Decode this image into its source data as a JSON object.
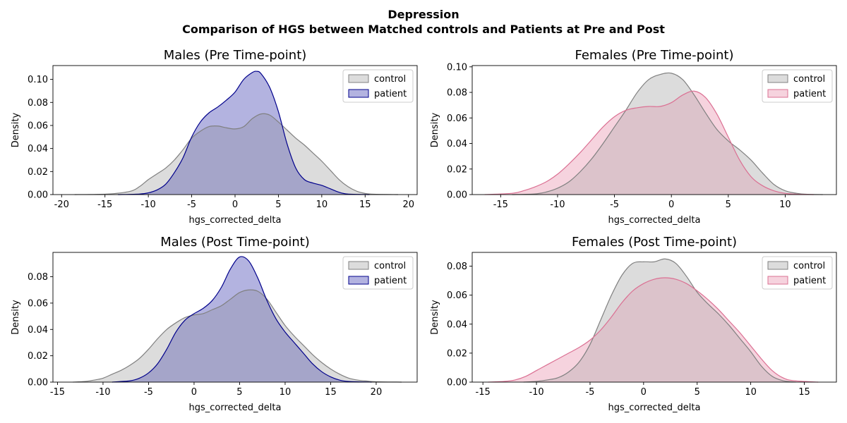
{
  "suptitle": {
    "line1": "Depression",
    "line2": "Comparison of HGS between Matched controls and Patients at Pre and Post"
  },
  "colors": {
    "control_line": "#808080",
    "control_fill": "#dcdcdc",
    "male_patient_line": "#00008b",
    "male_patient_fill": "#b3b3e0",
    "female_patient_line": "#db7093",
    "female_patient_fill": "#f6d3de",
    "overlap_male": "#a5a5c9",
    "overlap_female": "#dcc3cb"
  },
  "chart_data": [
    {
      "type": "area",
      "title": "Males (Pre Time-point)",
      "xlabel": "hgs_corrected_delta",
      "ylabel": "Density",
      "xlim": [
        -21,
        21
      ],
      "ylim": [
        0,
        0.112
      ],
      "xticks": [
        -20,
        -15,
        -10,
        -5,
        0,
        5,
        10,
        15,
        20
      ],
      "yticks": [
        "0.00",
        "0.02",
        "0.04",
        "0.06",
        "0.08",
        "0.10"
      ],
      "legend": "top-right",
      "grid": false,
      "series": [
        {
          "name": "control",
          "x": [
            -18.5,
            -16,
            -14,
            -12,
            -11,
            -10,
            -9,
            -8,
            -7,
            -6,
            -5,
            -4,
            -3,
            -2,
            -1,
            0,
            1,
            2,
            3,
            4,
            5,
            6,
            7,
            8,
            9,
            10,
            11,
            12,
            13,
            14,
            15,
            16,
            18.8
          ],
          "y": [
            0,
            0.0002,
            0.0008,
            0.003,
            0.007,
            0.013,
            0.018,
            0.023,
            0.03,
            0.039,
            0.049,
            0.055,
            0.059,
            0.0595,
            0.058,
            0.057,
            0.059,
            0.066,
            0.07,
            0.069,
            0.063,
            0.056,
            0.049,
            0.043,
            0.036,
            0.029,
            0.021,
            0.013,
            0.007,
            0.003,
            0.001,
            0.0003,
            0
          ]
        },
        {
          "name": "patient",
          "x": [
            -13.5,
            -11,
            -10,
            -9,
            -8,
            -7,
            -6,
            -5,
            -4,
            -3,
            -2,
            -1,
            0,
            1,
            2,
            2.5,
            3,
            4,
            5,
            6,
            7,
            8,
            9,
            10,
            11,
            12,
            13,
            15.5
          ],
          "y": [
            0,
            0.0005,
            0.0015,
            0.004,
            0.009,
            0.019,
            0.032,
            0.05,
            0.063,
            0.071,
            0.076,
            0.082,
            0.089,
            0.1,
            0.106,
            0.107,
            0.105,
            0.093,
            0.072,
            0.044,
            0.023,
            0.013,
            0.01,
            0.008,
            0.005,
            0.002,
            0.0005,
            0
          ]
        }
      ]
    },
    {
      "type": "area",
      "title": "Females (Pre Time-point)",
      "xlabel": "hgs_corrected_delta",
      "ylabel": "Density",
      "xlim": [
        -17.5,
        14.5
      ],
      "ylim": [
        0,
        0.101
      ],
      "xticks": [
        -15,
        -10,
        -5,
        0,
        5,
        10
      ],
      "yticks": [
        "0.00",
        "0.02",
        "0.04",
        "0.06",
        "0.08",
        "0.10"
      ],
      "legend": "top-right",
      "grid": false,
      "series": [
        {
          "name": "control",
          "x": [
            -14,
            -12,
            -11,
            -10,
            -9,
            -8,
            -7,
            -6,
            -5,
            -4,
            -3,
            -2,
            -1,
            0,
            1,
            2,
            3,
            4,
            5,
            6,
            7,
            8,
            9,
            10,
            11,
            12,
            13.3
          ],
          "y": [
            0,
            0.0005,
            0.002,
            0.005,
            0.01,
            0.018,
            0.028,
            0.04,
            0.053,
            0.066,
            0.08,
            0.09,
            0.094,
            0.095,
            0.09,
            0.078,
            0.064,
            0.051,
            0.042,
            0.035,
            0.027,
            0.017,
            0.008,
            0.003,
            0.001,
            0.0002,
            0
          ]
        },
        {
          "name": "patient",
          "x": [
            -16.4,
            -14,
            -13,
            -12,
            -11,
            -10,
            -9,
            -8,
            -7,
            -6,
            -5,
            -4,
            -3,
            -2,
            -1,
            0,
            1,
            2,
            3,
            4,
            5,
            6,
            7,
            8,
            9,
            10,
            11,
            12.5
          ],
          "y": [
            0,
            0.001,
            0.003,
            0.006,
            0.01,
            0.016,
            0.024,
            0.033,
            0.043,
            0.053,
            0.061,
            0.066,
            0.068,
            0.069,
            0.069,
            0.072,
            0.078,
            0.081,
            0.076,
            0.063,
            0.045,
            0.027,
            0.014,
            0.007,
            0.003,
            0.001,
            0.0003,
            0
          ]
        }
      ]
    },
    {
      "type": "area",
      "title": "Males (Post Time-point)",
      "xlabel": "hgs_corrected_delta",
      "ylabel": "Density",
      "xlim": [
        -15.5,
        24.5
      ],
      "ylim": [
        0,
        0.0985
      ],
      "xticks": [
        -15,
        -10,
        -5,
        0,
        5,
        10,
        15,
        20
      ],
      "yticks": [
        "0.00",
        "0.02",
        "0.04",
        "0.06",
        "0.08"
      ],
      "legend": "top-right",
      "grid": false,
      "series": [
        {
          "name": "control",
          "x": [
            -13.3,
            -12,
            -11,
            -10,
            -9,
            -8,
            -7,
            -6,
            -5,
            -4,
            -3,
            -2,
            -1,
            0,
            1,
            2,
            3,
            4,
            5,
            6,
            7,
            8,
            9,
            10,
            11,
            12,
            13,
            14,
            15,
            16,
            17,
            18,
            19,
            20,
            22.8
          ],
          "y": [
            0,
            0.0005,
            0.0015,
            0.003,
            0.006,
            0.009,
            0.013,
            0.018,
            0.025,
            0.033,
            0.04,
            0.045,
            0.049,
            0.051,
            0.052,
            0.055,
            0.058,
            0.063,
            0.068,
            0.07,
            0.069,
            0.063,
            0.053,
            0.043,
            0.035,
            0.028,
            0.021,
            0.015,
            0.01,
            0.006,
            0.003,
            0.0015,
            0.0008,
            0.0003,
            0
          ]
        },
        {
          "name": "patient",
          "x": [
            -9,
            -8,
            -7,
            -6,
            -5,
            -4,
            -3,
            -2,
            -1,
            0,
            1,
            2,
            3,
            4,
            5,
            6,
            7,
            8,
            9,
            10,
            11,
            12,
            13,
            14,
            15,
            16,
            17,
            19.5
          ],
          "y": [
            0,
            0.0005,
            0.001,
            0.003,
            0.007,
            0.014,
            0.025,
            0.038,
            0.047,
            0.052,
            0.056,
            0.062,
            0.072,
            0.086,
            0.095,
            0.092,
            0.079,
            0.062,
            0.048,
            0.038,
            0.03,
            0.022,
            0.014,
            0.008,
            0.004,
            0.0015,
            0.0005,
            0
          ]
        }
      ]
    },
    {
      "type": "area",
      "title": "Females (Post Time-point)",
      "xlabel": "hgs_corrected_delta",
      "ylabel": "Density",
      "xlim": [
        -16,
        18
      ],
      "ylim": [
        0,
        0.0895
      ],
      "xticks": [
        -15,
        -10,
        -5,
        0,
        5,
        10,
        15
      ],
      "yticks": [
        "0.00",
        "0.02",
        "0.04",
        "0.06",
        "0.08"
      ],
      "legend": "top-right",
      "grid": false,
      "series": [
        {
          "name": "control",
          "x": [
            -11.2,
            -10,
            -9,
            -8,
            -7,
            -6,
            -5,
            -4,
            -3,
            -2,
            -1,
            0,
            1,
            2,
            3,
            4,
            5,
            6,
            7,
            8,
            9,
            10,
            11,
            12,
            13,
            14.2
          ],
          "y": [
            0,
            0.0005,
            0.0015,
            0.003,
            0.007,
            0.014,
            0.026,
            0.043,
            0.06,
            0.074,
            0.082,
            0.083,
            0.083,
            0.085,
            0.082,
            0.073,
            0.062,
            0.054,
            0.047,
            0.039,
            0.03,
            0.021,
            0.011,
            0.004,
            0.001,
            0
          ]
        },
        {
          "name": "patient",
          "x": [
            -14.5,
            -13,
            -12,
            -11,
            -10,
            -9,
            -8,
            -7,
            -6,
            -5,
            -4,
            -3,
            -2,
            -1,
            0,
            1,
            2,
            3,
            4,
            5,
            6,
            7,
            8,
            9,
            10,
            11,
            12,
            13,
            14,
            16.3
          ],
          "y": [
            0,
            0.0005,
            0.0015,
            0.004,
            0.008,
            0.012,
            0.016,
            0.02,
            0.024,
            0.029,
            0.036,
            0.045,
            0.055,
            0.063,
            0.068,
            0.071,
            0.072,
            0.071,
            0.068,
            0.063,
            0.057,
            0.05,
            0.042,
            0.034,
            0.025,
            0.016,
            0.008,
            0.003,
            0.001,
            0
          ]
        }
      ]
    }
  ]
}
